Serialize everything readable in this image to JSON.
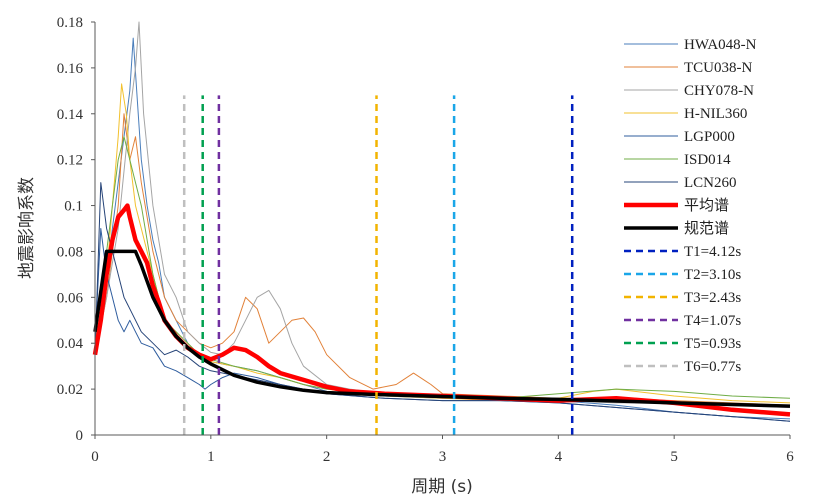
{
  "chart_data": {
    "type": "line",
    "title": "",
    "xlabel": "周期 (s)",
    "ylabel": "地震影响系数",
    "xlim": [
      0,
      6
    ],
    "ylim": [
      0,
      0.18
    ],
    "x_ticks": [
      "0",
      "1",
      "2",
      "3",
      "4",
      "5",
      "6"
    ],
    "y_ticks": [
      "0",
      "0.02",
      "0.04",
      "0.06",
      "0.08",
      "0.1",
      "0.12",
      "0.14",
      "0.16",
      "0.18"
    ],
    "grid": false,
    "legend_position": "right",
    "series": [
      {
        "name": "HWA048-N",
        "color": "#4a7ebb",
        "width": 1,
        "dash": "",
        "x": [
          0,
          0.05,
          0.1,
          0.15,
          0.2,
          0.25,
          0.3,
          0.33,
          0.36,
          0.4,
          0.45,
          0.5,
          0.55,
          0.6,
          0.7,
          0.8,
          0.9,
          1.0,
          1.2,
          1.4,
          1.6,
          1.8,
          2.0,
          2.5,
          3.0,
          3.5,
          4.0,
          4.5,
          5.0,
          5.5,
          6.0
        ],
        "y": [
          0.035,
          0.05,
          0.07,
          0.09,
          0.11,
          0.13,
          0.15,
          0.173,
          0.15,
          0.12,
          0.1,
          0.085,
          0.075,
          0.06,
          0.05,
          0.04,
          0.035,
          0.032,
          0.03,
          0.028,
          0.025,
          0.022,
          0.019,
          0.017,
          0.016,
          0.016,
          0.015,
          0.013,
          0.01,
          0.008,
          0.007
        ]
      },
      {
        "name": "TCU038-N",
        "color": "#e2823a",
        "width": 1,
        "dash": "",
        "x": [
          0,
          0.1,
          0.2,
          0.25,
          0.3,
          0.35,
          0.4,
          0.5,
          0.6,
          0.7,
          0.8,
          0.9,
          1.0,
          1.1,
          1.2,
          1.3,
          1.4,
          1.5,
          1.6,
          1.7,
          1.8,
          1.9,
          2.0,
          2.2,
          2.4,
          2.6,
          2.75,
          2.9,
          3.0,
          3.5,
          4.0,
          4.5,
          5.0,
          5.5,
          6.0
        ],
        "y": [
          0.035,
          0.06,
          0.1,
          0.14,
          0.12,
          0.13,
          0.11,
          0.08,
          0.06,
          0.05,
          0.045,
          0.04,
          0.038,
          0.04,
          0.045,
          0.06,
          0.055,
          0.04,
          0.045,
          0.05,
          0.051,
          0.045,
          0.035,
          0.025,
          0.02,
          0.022,
          0.027,
          0.022,
          0.018,
          0.017,
          0.016,
          0.016,
          0.015,
          0.014,
          0.013
        ]
      },
      {
        "name": "CHY078-N",
        "color": "#a5a5a5",
        "width": 1,
        "dash": "",
        "x": [
          0,
          0.1,
          0.2,
          0.3,
          0.35,
          0.38,
          0.42,
          0.5,
          0.6,
          0.7,
          0.8,
          0.9,
          1.0,
          1.1,
          1.2,
          1.3,
          1.4,
          1.5,
          1.6,
          1.7,
          1.8,
          2.0,
          2.2,
          2.5,
          3.0,
          3.5,
          4.0,
          4.5,
          5.0,
          5.5,
          6.0
        ],
        "y": [
          0.035,
          0.06,
          0.09,
          0.14,
          0.16,
          0.18,
          0.14,
          0.1,
          0.07,
          0.06,
          0.045,
          0.04,
          0.036,
          0.035,
          0.04,
          0.05,
          0.06,
          0.063,
          0.055,
          0.04,
          0.03,
          0.022,
          0.02,
          0.018,
          0.017,
          0.016,
          0.015,
          0.014,
          0.014,
          0.013,
          0.012
        ]
      },
      {
        "name": "H-NIL360",
        "color": "#f2c12e",
        "width": 1,
        "dash": "",
        "x": [
          0,
          0.1,
          0.15,
          0.2,
          0.23,
          0.27,
          0.3,
          0.35,
          0.4,
          0.5,
          0.6,
          0.7,
          0.8,
          0.9,
          1.0,
          1.2,
          1.4,
          1.6,
          1.8,
          2.0,
          2.5,
          3.0,
          3.5,
          4.0,
          4.3,
          4.5,
          5.0,
          5.5,
          6.0
        ],
        "y": [
          0.035,
          0.07,
          0.1,
          0.13,
          0.153,
          0.14,
          0.12,
          0.1,
          0.09,
          0.07,
          0.05,
          0.045,
          0.04,
          0.035,
          0.032,
          0.03,
          0.027,
          0.025,
          0.022,
          0.02,
          0.017,
          0.016,
          0.015,
          0.016,
          0.019,
          0.02,
          0.017,
          0.015,
          0.014
        ]
      },
      {
        "name": "LGP000",
        "color": "#2f5d9e",
        "width": 1,
        "dash": "",
        "x": [
          0,
          0.05,
          0.1,
          0.15,
          0.2,
          0.25,
          0.3,
          0.35,
          0.4,
          0.5,
          0.6,
          0.7,
          0.8,
          0.9,
          0.95,
          1.0,
          1.1,
          1.2,
          1.4,
          1.6,
          1.8,
          2.0,
          2.5,
          3.0,
          3.5,
          4.0,
          4.5,
          5.0,
          5.5,
          6.0
        ],
        "y": [
          0.04,
          0.09,
          0.07,
          0.06,
          0.05,
          0.045,
          0.05,
          0.045,
          0.04,
          0.038,
          0.03,
          0.028,
          0.025,
          0.022,
          0.02,
          0.022,
          0.025,
          0.027,
          0.025,
          0.022,
          0.02,
          0.018,
          0.016,
          0.015,
          0.015,
          0.014,
          0.012,
          0.01,
          0.008,
          0.006
        ]
      },
      {
        "name": "ISD014",
        "color": "#70ad47",
        "width": 1,
        "dash": "",
        "x": [
          0,
          0.1,
          0.2,
          0.25,
          0.3,
          0.35,
          0.4,
          0.5,
          0.6,
          0.7,
          0.8,
          0.9,
          1.0,
          1.2,
          1.4,
          1.6,
          1.8,
          2.0,
          2.5,
          3.0,
          3.5,
          4.0,
          4.5,
          5.0,
          5.5,
          6.0
        ],
        "y": [
          0.04,
          0.08,
          0.12,
          0.13,
          0.12,
          0.11,
          0.1,
          0.07,
          0.05,
          0.045,
          0.04,
          0.035,
          0.033,
          0.03,
          0.028,
          0.025,
          0.022,
          0.02,
          0.018,
          0.017,
          0.016,
          0.018,
          0.02,
          0.019,
          0.017,
          0.016
        ]
      },
      {
        "name": "LCN260",
        "color": "#264478",
        "width": 1,
        "dash": "",
        "x": [
          0,
          0.05,
          0.1,
          0.15,
          0.2,
          0.25,
          0.3,
          0.4,
          0.5,
          0.6,
          0.7,
          0.8,
          0.9,
          1.0,
          1.2,
          1.4,
          1.6,
          1.8,
          2.0,
          2.5,
          3.0,
          3.5,
          4.0,
          4.5,
          5.0,
          5.5,
          6.0
        ],
        "y": [
          0.035,
          0.11,
          0.09,
          0.08,
          0.07,
          0.06,
          0.055,
          0.045,
          0.04,
          0.035,
          0.037,
          0.034,
          0.03,
          0.028,
          0.026,
          0.024,
          0.022,
          0.02,
          0.018,
          0.016,
          0.015,
          0.015,
          0.014,
          0.012,
          0.01,
          0.008,
          0.006
        ]
      },
      {
        "name": "平均谱",
        "color": "#ff0000",
        "width": 4.5,
        "dash": "",
        "x": [
          0,
          0.05,
          0.1,
          0.15,
          0.2,
          0.25,
          0.28,
          0.3,
          0.35,
          0.4,
          0.45,
          0.5,
          0.55,
          0.6,
          0.7,
          0.8,
          0.9,
          1.0,
          1.1,
          1.2,
          1.3,
          1.4,
          1.5,
          1.6,
          1.8,
          2.0,
          2.2,
          2.5,
          3.0,
          3.5,
          4.0,
          4.5,
          5.0,
          5.5,
          6.0
        ],
        "y": [
          0.035,
          0.05,
          0.07,
          0.085,
          0.095,
          0.098,
          0.1,
          0.095,
          0.085,
          0.08,
          0.075,
          0.065,
          0.058,
          0.05,
          0.043,
          0.038,
          0.035,
          0.033,
          0.035,
          0.038,
          0.037,
          0.034,
          0.03,
          0.027,
          0.024,
          0.021,
          0.019,
          0.018,
          0.017,
          0.016,
          0.015,
          0.016,
          0.014,
          0.011,
          0.009
        ]
      },
      {
        "name": "规范谱",
        "color": "#000000",
        "width": 3.5,
        "dash": "",
        "x": [
          0,
          0.1,
          0.15,
          0.2,
          0.3,
          0.35,
          0.4,
          0.5,
          0.6,
          0.7,
          0.8,
          0.9,
          1.0,
          1.2,
          1.4,
          1.6,
          1.8,
          2.0,
          2.5,
          3.0,
          3.5,
          4.0,
          4.5,
          5.0,
          5.5,
          6.0
        ],
        "y": [
          0.045,
          0.08,
          0.08,
          0.08,
          0.08,
          0.08,
          0.074,
          0.06,
          0.05,
          0.043,
          0.038,
          0.034,
          0.031,
          0.026,
          0.023,
          0.021,
          0.0195,
          0.0185,
          0.0175,
          0.0168,
          0.016,
          0.0155,
          0.0148,
          0.014,
          0.0133,
          0.0126
        ]
      },
      {
        "name": "T1=4.12s",
        "color": "#0020c0",
        "width": 2.5,
        "dash": "7,5",
        "x": [
          4.12,
          4.12
        ],
        "y": [
          0,
          0.148
        ]
      },
      {
        "name": "T2=3.10s",
        "color": "#1aa6e8",
        "width": 2.5,
        "dash": "7,5",
        "x": [
          3.1,
          3.1
        ],
        "y": [
          0,
          0.148
        ]
      },
      {
        "name": "T3=2.43s",
        "color": "#f2b400",
        "width": 2.5,
        "dash": "7,5",
        "x": [
          2.43,
          2.43
        ],
        "y": [
          0,
          0.148
        ]
      },
      {
        "name": "T4=1.07s",
        "color": "#7030a0",
        "width": 2.5,
        "dash": "7,5",
        "x": [
          1.07,
          1.07
        ],
        "y": [
          0,
          0.148
        ]
      },
      {
        "name": "T5=0.93s",
        "color": "#00a050",
        "width": 2.5,
        "dash": "7,5",
        "x": [
          0.93,
          0.93
        ],
        "y": [
          0,
          0.148
        ]
      },
      {
        "name": "T6=0.77s",
        "color": "#bfbfbf",
        "width": 2.5,
        "dash": "7,5",
        "x": [
          0.77,
          0.77
        ],
        "y": [
          0,
          0.148
        ]
      }
    ]
  }
}
